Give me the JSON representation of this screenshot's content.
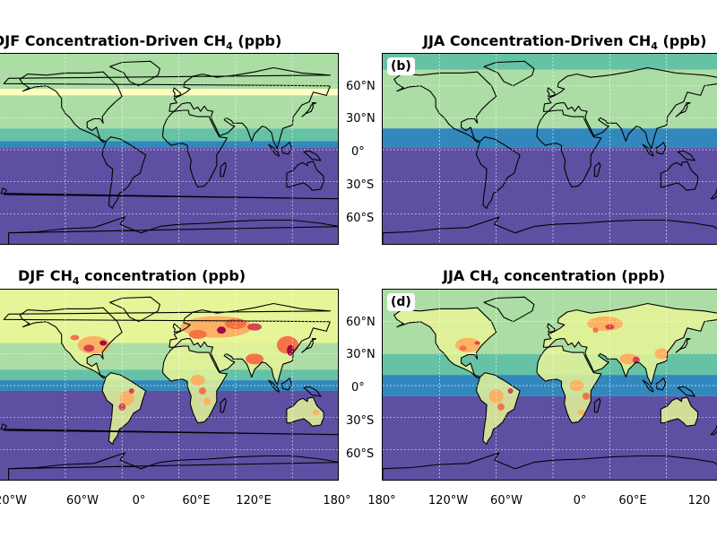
{
  "panels": [
    {
      "id": "a",
      "title_prefix": "DJF Concentration-Driven CH",
      "title_sub": "4",
      "title_suffix": " (ppb)",
      "badge": "",
      "field": "zonal_djf"
    },
    {
      "id": "b",
      "title_prefix": "JJA Concentration-Driven CH",
      "title_sub": "4",
      "title_suffix": " (ppb)",
      "badge": "(b)",
      "field": "zonal_jja"
    },
    {
      "id": "c",
      "title_prefix": "DJF CH",
      "title_sub": "4",
      "title_suffix": " concentration (ppb)",
      "badge": "",
      "field": "emission_djf"
    },
    {
      "id": "d",
      "title_prefix": "JJA CH",
      "title_sub": "4",
      "title_suffix": " concentration (ppb)",
      "badge": "(d)",
      "field": "emission_jja"
    }
  ],
  "lat_ticks": [
    "60°N",
    "30°N",
    "0°",
    "30°S",
    "60°S"
  ],
  "lon_ticks_left": [
    "20°W",
    "60°W",
    "0°",
    "60°E",
    "120°E",
    "180°"
  ],
  "lon_ticks_right": [
    "180°",
    "120°W",
    "60°W",
    "0°",
    "60°E",
    "120"
  ],
  "colormap": "Spectral_r",
  "palette": {
    "purple": "#5e4fa2",
    "blue": "#3288bd",
    "teal": "#66c2a5",
    "green": "#abdda4",
    "light_yellow": "#e6f598",
    "yellow": "#ffffbf",
    "orange": "#fdae61",
    "red_orange": "#f46d43",
    "red": "#d53e4f",
    "dark_red": "#9e0142"
  },
  "gridlines": true
}
